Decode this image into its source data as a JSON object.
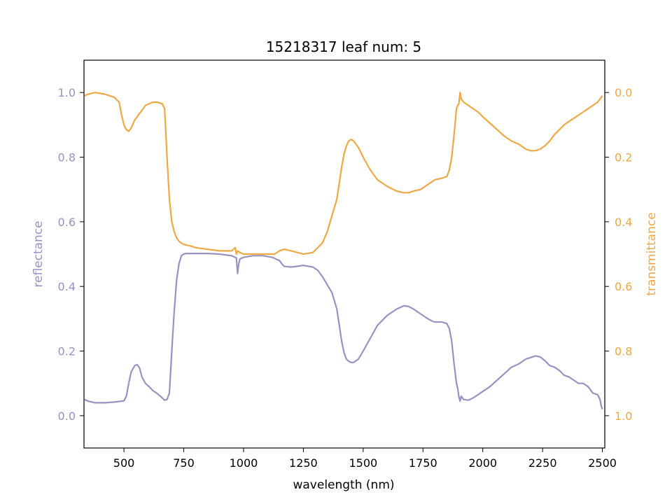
{
  "chart_data": {
    "type": "line",
    "title": "15218317 leaf num: 5",
    "xlabel": "wavelength (nm)",
    "ylabel": "reflectance",
    "y2label": "transmittance",
    "xlim": [
      333,
      2510
    ],
    "ylim": [
      -0.1,
      1.1
    ],
    "y2lim": [
      1.1,
      -0.1
    ],
    "y2_inverted": true,
    "grid": false,
    "x_ticks": [
      500,
      750,
      1000,
      1250,
      1500,
      1750,
      2000,
      2250,
      2500
    ],
    "y_ticks": [
      "0.0",
      "0.2",
      "0.4",
      "0.6",
      "0.8",
      "1.0"
    ],
    "y2_ticks": [
      "0.0",
      "0.2",
      "0.4",
      "0.6",
      "0.8",
      "1.0"
    ],
    "colors": {
      "reflectance": "#9892c4",
      "transmittance": "#eea845",
      "axis": "#000000"
    },
    "series": [
      {
        "key": "reflectance",
        "axis": "left",
        "x": [
          335,
          350,
          380,
          420,
          460,
          500,
          510,
          520,
          530,
          545,
          555,
          565,
          575,
          590,
          605,
          620,
          640,
          660,
          670,
          680,
          690,
          700,
          710,
          720,
          730,
          740,
          750,
          760,
          800,
          850,
          900,
          950,
          970,
          975,
          980,
          985,
          1000,
          1040,
          1080,
          1120,
          1150,
          1160,
          1170,
          1200,
          1250,
          1290,
          1310,
          1330,
          1350,
          1370,
          1390,
          1400,
          1410,
          1420,
          1430,
          1440,
          1450,
          1460,
          1480,
          1500,
          1530,
          1560,
          1600,
          1640,
          1670,
          1690,
          1710,
          1740,
          1770,
          1790,
          1800,
          1810,
          1830,
          1850,
          1860,
          1870,
          1880,
          1890,
          1895,
          1900,
          1905,
          1910,
          1920,
          1940,
          1960,
          1980,
          2000,
          2030,
          2060,
          2090,
          2120,
          2150,
          2180,
          2200,
          2220,
          2240,
          2260,
          2280,
          2300,
          2320,
          2340,
          2360,
          2380,
          2400,
          2420,
          2440,
          2460,
          2480,
          2490,
          2495,
          2500
        ],
        "y": [
          0.05,
          0.045,
          0.04,
          0.04,
          0.042,
          0.046,
          0.06,
          0.1,
          0.135,
          0.155,
          0.158,
          0.148,
          0.12,
          0.1,
          0.09,
          0.078,
          0.068,
          0.055,
          0.048,
          0.05,
          0.07,
          0.2,
          0.32,
          0.42,
          0.47,
          0.495,
          0.5,
          0.502,
          0.502,
          0.502,
          0.5,
          0.495,
          0.488,
          0.44,
          0.47,
          0.485,
          0.49,
          0.495,
          0.495,
          0.49,
          0.48,
          0.47,
          0.462,
          0.46,
          0.465,
          0.46,
          0.45,
          0.43,
          0.405,
          0.38,
          0.33,
          0.28,
          0.23,
          0.195,
          0.175,
          0.168,
          0.165,
          0.165,
          0.175,
          0.2,
          0.24,
          0.28,
          0.31,
          0.33,
          0.34,
          0.338,
          0.33,
          0.315,
          0.3,
          0.292,
          0.29,
          0.29,
          0.29,
          0.285,
          0.27,
          0.23,
          0.16,
          0.1,
          0.085,
          0.06,
          0.045,
          0.06,
          0.05,
          0.048,
          0.055,
          0.065,
          0.075,
          0.09,
          0.11,
          0.13,
          0.15,
          0.16,
          0.175,
          0.18,
          0.185,
          0.182,
          0.17,
          0.155,
          0.15,
          0.14,
          0.125,
          0.12,
          0.11,
          0.1,
          0.1,
          0.09,
          0.07,
          0.065,
          0.05,
          0.03,
          0.02
        ]
      },
      {
        "key": "transmittance",
        "axis": "right",
        "x": [
          335,
          350,
          380,
          420,
          460,
          480,
          490,
          500,
          510,
          520,
          530,
          545,
          555,
          565,
          575,
          590,
          605,
          620,
          640,
          660,
          670,
          680,
          690,
          700,
          710,
          720,
          730,
          740,
          750,
          760,
          780,
          800,
          850,
          900,
          950,
          965,
          970,
          975,
          985,
          1000,
          1050,
          1100,
          1130,
          1150,
          1170,
          1200,
          1250,
          1290,
          1310,
          1330,
          1350,
          1370,
          1390,
          1400,
          1410,
          1420,
          1430,
          1440,
          1450,
          1460,
          1480,
          1500,
          1530,
          1560,
          1600,
          1640,
          1670,
          1690,
          1710,
          1740,
          1760,
          1780,
          1800,
          1830,
          1850,
          1860,
          1870,
          1880,
          1890,
          1895,
          1900,
          1905,
          1910,
          1920,
          1940,
          1960,
          1980,
          2000,
          2030,
          2060,
          2090,
          2120,
          2150,
          2180,
          2200,
          2220,
          2240,
          2260,
          2280,
          2300,
          2320,
          2340,
          2360,
          2380,
          2400,
          2420,
          2440,
          2460,
          2480,
          2490,
          2495,
          2500
        ],
        "y": [
          0.01,
          0.005,
          0.0,
          0.005,
          0.015,
          0.03,
          0.07,
          0.1,
          0.115,
          0.12,
          0.11,
          0.085,
          0.075,
          0.065,
          0.055,
          0.04,
          0.035,
          0.03,
          0.03,
          0.035,
          0.05,
          0.2,
          0.33,
          0.4,
          0.43,
          0.45,
          0.46,
          0.466,
          0.47,
          0.472,
          0.475,
          0.48,
          0.485,
          0.49,
          0.49,
          0.48,
          0.5,
          0.49,
          0.495,
          0.5,
          0.5,
          0.5,
          0.5,
          0.49,
          0.485,
          0.49,
          0.5,
          0.495,
          0.48,
          0.465,
          0.43,
          0.38,
          0.33,
          0.28,
          0.23,
          0.19,
          0.165,
          0.15,
          0.145,
          0.15,
          0.17,
          0.2,
          0.24,
          0.27,
          0.29,
          0.305,
          0.31,
          0.31,
          0.305,
          0.3,
          0.29,
          0.28,
          0.27,
          0.265,
          0.26,
          0.24,
          0.2,
          0.13,
          0.05,
          0.04,
          0.035,
          0.0,
          0.02,
          0.03,
          0.04,
          0.05,
          0.06,
          0.075,
          0.095,
          0.115,
          0.135,
          0.15,
          0.16,
          0.175,
          0.18,
          0.18,
          0.175,
          0.165,
          0.15,
          0.13,
          0.115,
          0.1,
          0.09,
          0.08,
          0.07,
          0.06,
          0.05,
          0.04,
          0.03,
          0.02,
          0.015,
          0.01
        ]
      }
    ]
  }
}
